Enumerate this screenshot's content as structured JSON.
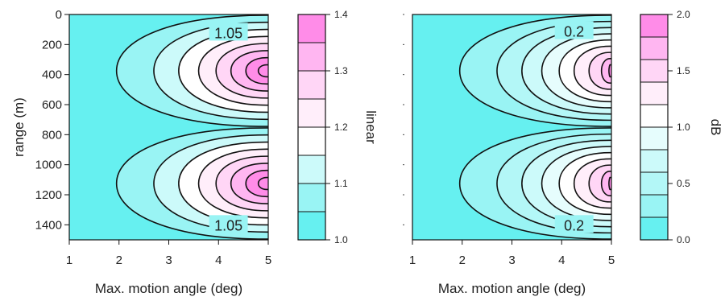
{
  "chart_data": [
    {
      "type": "heatmap",
      "subtype": "filled-contour",
      "xlabel": "Max. motion angle (deg)",
      "ylabel": "range (m)",
      "xlim": [
        1,
        5
      ],
      "ylim": [
        1500,
        0
      ],
      "x_ticks": [
        "1",
        "2",
        "3",
        "4",
        "5"
      ],
      "y_ticks": [
        "0",
        "200",
        "400",
        "600",
        "800",
        "1000",
        "1200",
        "1400"
      ],
      "peaks_range_m": [
        375,
        1125
      ],
      "contour_start_deg": [
        1.95,
        2.7,
        3.2,
        3.6,
        3.95,
        4.25,
        4.55,
        4.8
      ],
      "contour_labels": [
        {
          "text": "1.05",
          "x": 4.2,
          "y": 120
        },
        {
          "text": "1.05",
          "x": 4.2,
          "y": 1400
        }
      ],
      "colorbar": {
        "label": "linear",
        "min": 1.0,
        "max": 1.4,
        "levels": [
          1.0,
          1.05,
          1.1,
          1.15,
          1.2,
          1.25,
          1.3,
          1.35,
          1.4
        ],
        "tick_labels": [
          "1.0",
          "1.1",
          "1.2",
          "1.3",
          "1.4"
        ],
        "tick_values": [
          1.0,
          1.1,
          1.2,
          1.3,
          1.4
        ]
      },
      "colors": [
        "#66f0f0",
        "#99f4f4",
        "#ccfafa",
        "#ffffff",
        "#ffeefa",
        "#ffd6f6",
        "#ffb6f1",
        "#ff8ce8"
      ],
      "show_y_tick_labels": true
    },
    {
      "type": "heatmap",
      "subtype": "filled-contour",
      "xlabel": "Max. motion angle (deg)",
      "ylabel": "",
      "xlim": [
        1,
        5
      ],
      "ylim": [
        1500,
        0
      ],
      "x_ticks": [
        "1",
        "2",
        "3",
        "4",
        "5"
      ],
      "y_ticks": [],
      "peaks_range_m": [
        375,
        1125
      ],
      "contour_start_deg": [
        1.95,
        2.7,
        3.2,
        3.6,
        3.95,
        4.25,
        4.55,
        4.8,
        4.95
      ],
      "contour_labels": [
        {
          "text": "0.2",
          "x": 4.25,
          "y": 110
        },
        {
          "text": "0.2",
          "x": 4.25,
          "y": 1400
        }
      ],
      "colorbar": {
        "label": "dB",
        "min": 0.0,
        "max": 2.0,
        "levels": [
          0.0,
          0.2,
          0.4,
          0.6,
          0.8,
          1.0,
          1.2,
          1.4,
          1.6,
          1.8,
          2.0
        ],
        "tick_labels": [
          "0.0",
          "0.5",
          "1.0",
          "1.5",
          "2.0"
        ],
        "tick_values": [
          0.0,
          0.5,
          1.0,
          1.5,
          2.0
        ]
      },
      "colors": [
        "#66f0f0",
        "#99f4f4",
        "#b3f7f7",
        "#ccfafa",
        "#e6fdfd",
        "#ffffff",
        "#ffeefa",
        "#ffd6f6",
        "#ffb6f1",
        "#ff8ce8"
      ],
      "show_y_tick_labels": false
    }
  ]
}
